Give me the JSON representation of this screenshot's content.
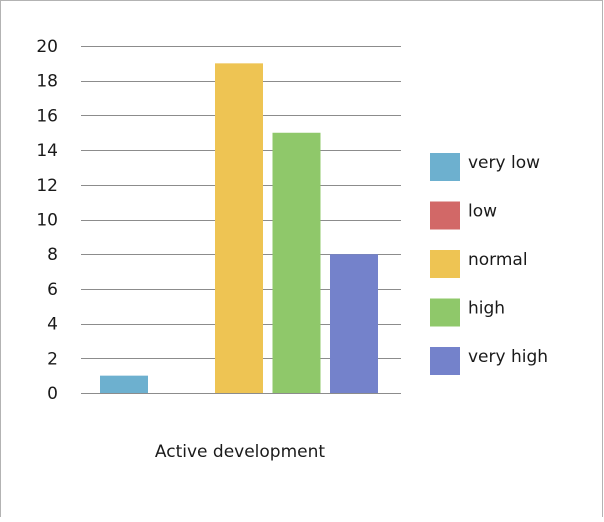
{
  "chart_data": {
    "type": "bar",
    "categories": [
      "Active development"
    ],
    "series": [
      {
        "name": "very low",
        "color": "#6db0cf",
        "values": [
          1
        ]
      },
      {
        "name": "low",
        "color": "#d26867",
        "values": [
          0
        ]
      },
      {
        "name": "normal",
        "color": "#eec453",
        "values": [
          19
        ]
      },
      {
        "name": "high",
        "color": "#8fc86a",
        "values": [
          15
        ]
      },
      {
        "name": "very high",
        "color": "#7482cb",
        "values": [
          8
        ]
      }
    ],
    "ylim": [
      0,
      20
    ],
    "yticks": [
      "0",
      "2",
      "4",
      "6",
      "8",
      "10",
      "12",
      "14",
      "16",
      "18",
      "20"
    ],
    "grid": true,
    "legend_position": "right",
    "title": "",
    "xlabel": "",
    "ylabel": ""
  }
}
